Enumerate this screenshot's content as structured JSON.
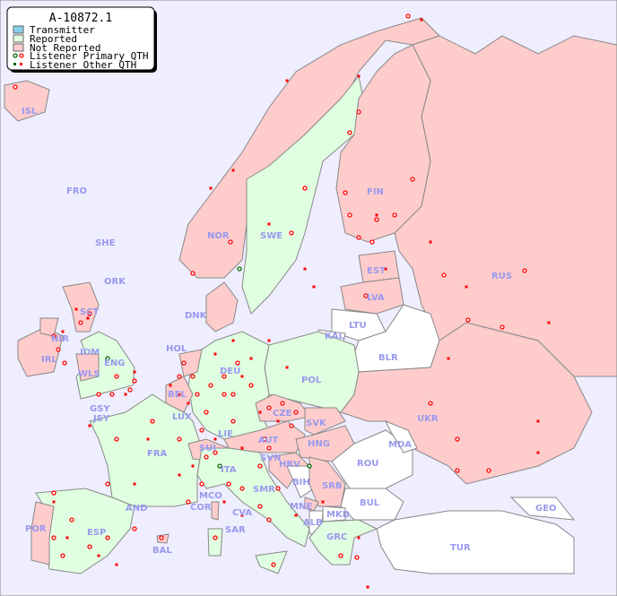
{
  "title": "A-10872.1",
  "legend": {
    "items": [
      {
        "label": "Transmitter",
        "color": "#87ceeb"
      },
      {
        "label": "Reported",
        "color": "#e0ffe0"
      },
      {
        "label": "Not Reported",
        "color": "#ffcccc"
      },
      {
        "label": "Listener Primary QTH",
        "color": "#ff0000"
      },
      {
        "label": "Listener Other QTH",
        "color": "#ff0000"
      }
    ]
  },
  "colors": {
    "sea": "#eeeeff",
    "reported": "#e0ffe0",
    "not_reported": "#ffcccc",
    "no_data": "#ffffff",
    "border": "#888888",
    "label": "#9999ee",
    "listener": "#ff0000",
    "listener_alt": "#006600"
  },
  "countries": [
    "ISL",
    "FRO",
    "SHE",
    "ORK",
    "NOR",
    "SWE",
    "FIN",
    "EST",
    "RUS",
    "LVA",
    "LTU",
    "KAL",
    "BLR",
    "DNK",
    "SCT",
    "NIR",
    "IRL",
    "IOM",
    "ENG",
    "WLS",
    "HOL",
    "DEU",
    "POL",
    "UKR",
    "BEL",
    "GSY",
    "JSY",
    "LUX",
    "FRA",
    "SUI",
    "LIE",
    "AUT",
    "CZE",
    "SVK",
    "HNG",
    "MDA",
    "ROU",
    "SVN",
    "HRV",
    "BIH",
    "SRB",
    "ITA",
    "SMR",
    "MCO",
    "COR",
    "CVA",
    "MNE",
    "ALB",
    "MKD",
    "BUL",
    "GEO",
    "AND",
    "POR",
    "ESP",
    "BAL",
    "SAR",
    "GRC",
    "TUR"
  ]
}
